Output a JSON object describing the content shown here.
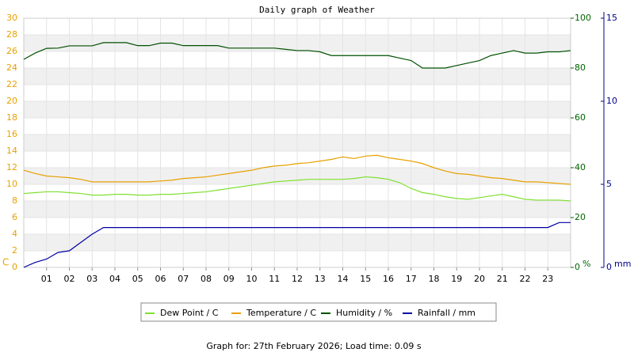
{
  "chart_data": {
    "type": "line",
    "title": "Daily graph of Weather",
    "y_label": "C",
    "y2_label": "%",
    "y3_label": "mm",
    "xlim": [
      0,
      24
    ],
    "xticks": [
      {
        "value": 1,
        "label": "01"
      },
      {
        "value": 2,
        "label": "02"
      },
      {
        "value": 3,
        "label": "03"
      },
      {
        "value": 4,
        "label": "04"
      },
      {
        "value": 5,
        "label": "05"
      },
      {
        "value": 6,
        "label": "06"
      },
      {
        "value": 7,
        "label": "07"
      },
      {
        "value": 8,
        "label": "08"
      },
      {
        "value": 9,
        "label": "09"
      },
      {
        "value": 10,
        "label": "10"
      },
      {
        "value": 11,
        "label": "11"
      },
      {
        "value": 12,
        "label": "12"
      },
      {
        "value": 13,
        "label": "13"
      },
      {
        "value": 14,
        "label": "14"
      },
      {
        "value": 15,
        "label": "15"
      },
      {
        "value": 16,
        "label": "16"
      },
      {
        "value": 17,
        "label": "17"
      },
      {
        "value": 18,
        "label": "18"
      },
      {
        "value": 19,
        "label": "19"
      },
      {
        "value": 20,
        "label": "20"
      },
      {
        "value": 21,
        "label": "21"
      },
      {
        "value": 22,
        "label": "22"
      },
      {
        "value": 23,
        "label": "23"
      }
    ],
    "ylim": [
      0,
      30
    ],
    "yticks": [
      0,
      2,
      4,
      6,
      8,
      10,
      12,
      14,
      16,
      18,
      20,
      22,
      24,
      26,
      28,
      30
    ],
    "y_color": "#e8a000",
    "y2lim": [
      0,
      100
    ],
    "y2ticks": [
      0,
      20,
      40,
      60,
      80,
      100
    ],
    "y2_color": "#006400",
    "y3lim": [
      0,
      15
    ],
    "y3ticks": [
      0,
      5,
      10,
      15
    ],
    "y3_color": "#00008b",
    "grid": true,
    "legend": "bottom",
    "x": [
      0,
      0.5,
      1,
      1.5,
      2,
      2.5,
      3,
      3.5,
      4,
      4.5,
      5,
      5.5,
      6,
      6.5,
      7,
      7.5,
      8,
      8.5,
      9,
      9.5,
      10,
      10.5,
      11,
      11.5,
      12,
      12.5,
      13,
      13.5,
      14,
      14.5,
      15,
      15.5,
      16,
      16.5,
      17,
      17.5,
      18,
      18.5,
      19,
      19.5,
      20,
      20.5,
      21,
      21.5,
      22,
      22.5,
      23,
      23.5,
      24
    ],
    "series": [
      {
        "name": "Dew Point / C",
        "color": "#7fe030",
        "axis": "y",
        "values": [
          8.9,
          9.0,
          9.1,
          9.1,
          9.0,
          8.9,
          8.7,
          8.7,
          8.8,
          8.8,
          8.7,
          8.7,
          8.8,
          8.8,
          8.9,
          9.0,
          9.1,
          9.3,
          9.5,
          9.7,
          9.9,
          10.1,
          10.3,
          10.4,
          10.5,
          10.6,
          10.6,
          10.6,
          10.6,
          10.7,
          10.9,
          10.8,
          10.6,
          10.2,
          9.5,
          9.0,
          8.8,
          8.5,
          8.3,
          8.2,
          8.4,
          8.6,
          8.8,
          8.5,
          8.2,
          8.1,
          8.1,
          8.1,
          8.0
        ]
      },
      {
        "name": "Temperature / C",
        "color": "#e8a000",
        "axis": "y",
        "values": [
          11.7,
          11.3,
          11.0,
          10.9,
          10.8,
          10.6,
          10.3,
          10.3,
          10.3,
          10.3,
          10.3,
          10.3,
          10.4,
          10.5,
          10.7,
          10.8,
          10.9,
          11.1,
          11.3,
          11.5,
          11.7,
          12.0,
          12.2,
          12.3,
          12.5,
          12.6,
          12.8,
          13.0,
          13.3,
          13.1,
          13.4,
          13.5,
          13.2,
          13.0,
          12.8,
          12.5,
          12.0,
          11.6,
          11.3,
          11.2,
          11.0,
          10.8,
          10.7,
          10.5,
          10.3,
          10.3,
          10.2,
          10.1,
          10.0
        ]
      },
      {
        "name": "Humidity / %",
        "color": "#005000",
        "axis": "y2",
        "values": [
          83.5,
          86,
          87.9,
          88,
          88.9,
          88.9,
          88.9,
          90.2,
          90.2,
          90.2,
          89,
          89,
          90,
          90,
          89,
          89,
          89,
          89,
          88,
          88,
          88,
          88,
          88,
          87.5,
          87,
          87,
          86.5,
          85,
          85,
          85,
          85,
          85,
          85,
          84,
          83,
          80,
          80,
          80,
          81,
          82,
          83,
          85,
          86,
          87,
          86,
          86,
          86.5,
          86.5,
          87
        ]
      },
      {
        "name": "Rainfall / mm",
        "color": "#0000a0",
        "axis": "y3",
        "values": [
          0,
          0.3,
          0.5,
          0.9,
          1.0,
          1.5,
          2.0,
          2.4,
          2.4,
          2.4,
          2.4,
          2.4,
          2.4,
          2.4,
          2.4,
          2.4,
          2.4,
          2.4,
          2.4,
          2.4,
          2.4,
          2.4,
          2.4,
          2.4,
          2.4,
          2.4,
          2.4,
          2.4,
          2.4,
          2.4,
          2.4,
          2.4,
          2.4,
          2.4,
          2.4,
          2.4,
          2.4,
          2.4,
          2.4,
          2.4,
          2.4,
          2.4,
          2.4,
          2.4,
          2.4,
          2.4,
          2.4,
          2.7,
          2.7
        ]
      }
    ],
    "footer": "Graph for: 27th February 2026; Load time: 0.09 s"
  }
}
